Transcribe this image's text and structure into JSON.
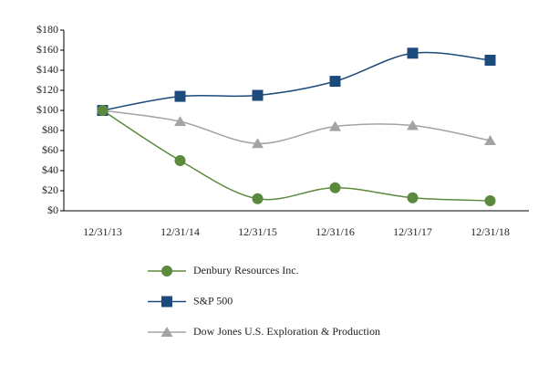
{
  "chart_data": {
    "type": "line",
    "categories": [
      "12/31/13",
      "12/31/14",
      "12/31/15",
      "12/31/16",
      "12/31/17",
      "12/31/18"
    ],
    "series": [
      {
        "name": "Denbury Resources Inc.",
        "color": "#5b8a3e",
        "marker": "circle",
        "values": [
          100,
          50,
          12,
          23,
          13,
          10
        ]
      },
      {
        "name": "S&P 500",
        "color": "#1c4a7a",
        "marker": "square",
        "values": [
          100,
          114,
          115,
          129,
          157,
          150
        ]
      },
      {
        "name": "Dow Jones U.S. Exploration & Production",
        "color": "#a3a3a3",
        "marker": "triangle",
        "values": [
          100,
          89,
          67,
          84,
          85,
          70
        ]
      }
    ],
    "ylim": [
      0,
      180
    ],
    "yticks": [
      {
        "value": 0,
        "label": "$0"
      },
      {
        "value": 20,
        "label": "$20"
      },
      {
        "value": 40,
        "label": "$40"
      },
      {
        "value": 60,
        "label": "$60"
      },
      {
        "value": 80,
        "label": "$80"
      },
      {
        "value": 100,
        "label": "$100"
      },
      {
        "value": 120,
        "label": "$120"
      },
      {
        "value": 140,
        "label": "$140"
      },
      {
        "value": 160,
        "label": "$160"
      },
      {
        "value": 180,
        "label": "$180"
      }
    ],
    "smooth": true,
    "legend": "bottom"
  }
}
